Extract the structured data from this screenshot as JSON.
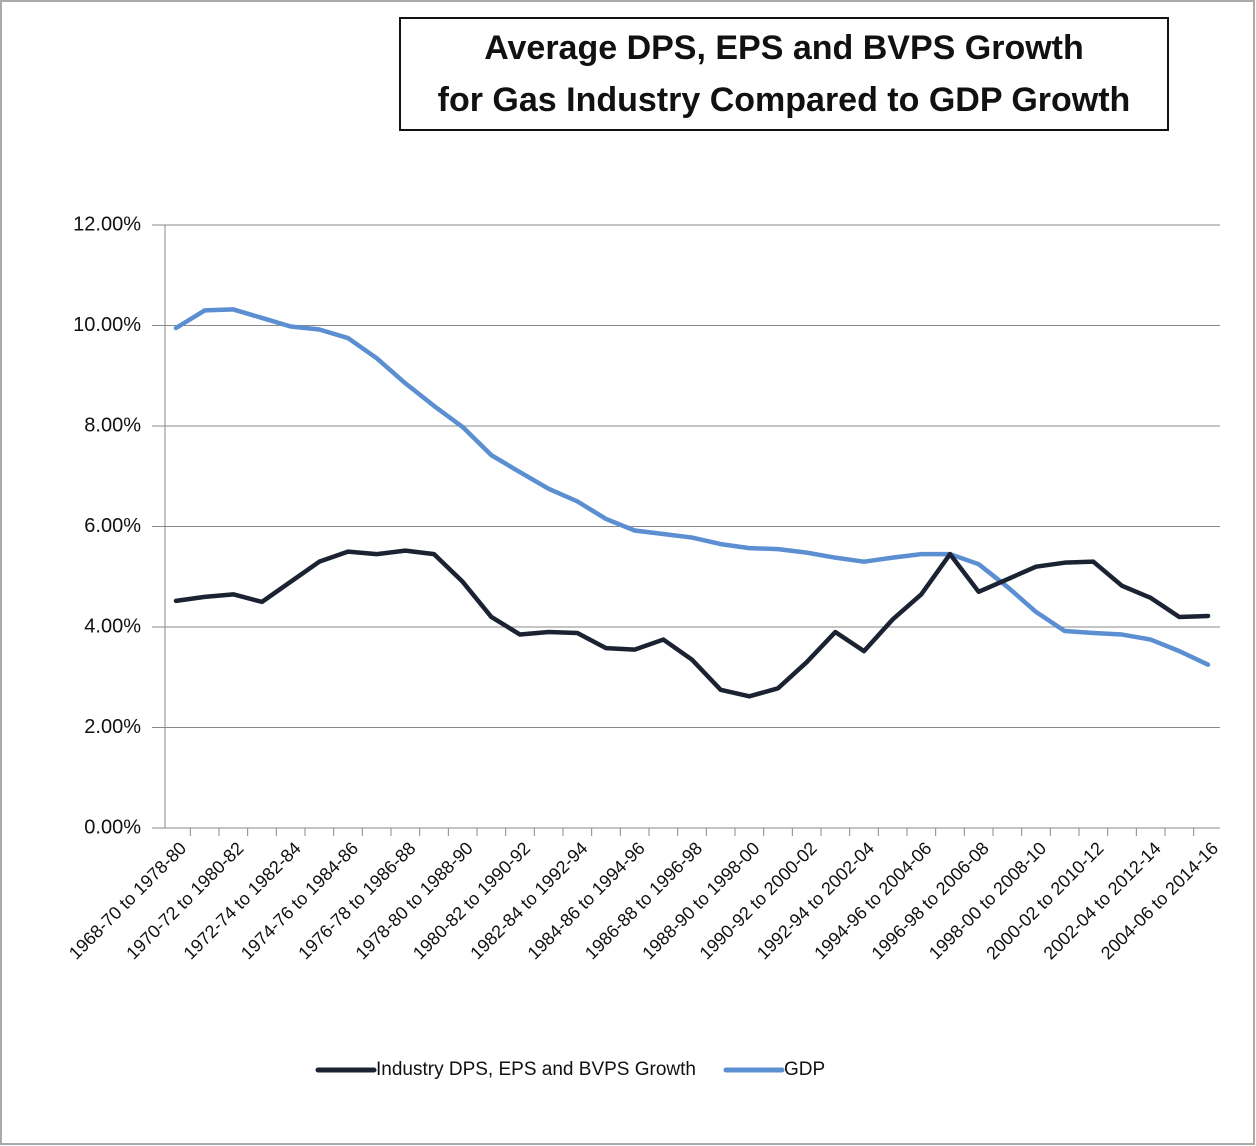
{
  "chart_data": {
    "type": "line",
    "title": [
      "Average DPS, EPS and BVPS Growth",
      "for Gas Industry Compared to GDP Growth"
    ],
    "categories": [
      "1968-70 to 1978-80",
      null,
      "1970-72 to 1980-82",
      null,
      "1972-74 to 1982-84",
      null,
      "1974-76 to 1984-86",
      null,
      "1976-78 to 1986-88",
      null,
      "1978-80 to 1988-90",
      null,
      "1980-82 to 1990-92",
      null,
      "1982-84 to 1992-94",
      null,
      "1984-86 to 1994-96",
      null,
      "1986-88 to 1996-98",
      null,
      "1988-90 to 1998-00",
      null,
      "1990-92 to 2000-02",
      null,
      "1992-94 to 2002-04",
      null,
      "1994-96 to 2004-06",
      null,
      "1996-98 to 2006-08",
      null,
      "1998-00 to 2008-10",
      null,
      "2000-02 to 2010-12",
      null,
      "2002-04 to 2012-14",
      null,
      "2004-06 to 2014-16"
    ],
    "series": [
      {
        "name": "Industry DPS, EPS and BVPS Growth",
        "color": "#1b2333",
        "values": [
          4.52,
          4.6,
          4.65,
          4.5,
          4.9,
          5.3,
          5.5,
          5.45,
          5.52,
          5.45,
          4.9,
          4.2,
          3.85,
          3.9,
          3.88,
          3.58,
          3.55,
          3.75,
          3.35,
          2.75,
          2.62,
          2.78,
          3.3,
          3.9,
          3.52,
          4.15,
          4.65,
          5.45,
          4.7,
          4.95,
          5.2,
          5.28,
          5.3,
          4.82,
          4.58,
          4.2,
          4.22
        ]
      },
      {
        "name": "GDP",
        "color": "#5b8fd1",
        "values": [
          9.95,
          10.3,
          10.32,
          10.15,
          9.98,
          9.92,
          9.75,
          9.35,
          8.85,
          8.4,
          7.98,
          7.42,
          7.08,
          6.75,
          6.5,
          6.15,
          5.92,
          5.85,
          5.78,
          5.65,
          5.57,
          5.55,
          5.48,
          5.38,
          5.3,
          5.38,
          5.45,
          5.45,
          5.25,
          4.8,
          4.3,
          3.92,
          3.88,
          3.85,
          3.75,
          3.52,
          3.25
        ]
      }
    ],
    "ylim": [
      0,
      12
    ],
    "yticks": [
      {
        "value": 0,
        "label": "0.00%"
      },
      {
        "value": 2,
        "label": "2.00%"
      },
      {
        "value": 4,
        "label": "4.00%"
      },
      {
        "value": 6,
        "label": "6.00%"
      },
      {
        "value": 8,
        "label": "8.00%"
      },
      {
        "value": 10,
        "label": "10.00%"
      },
      {
        "value": 12,
        "label": "12.00%"
      }
    ],
    "grid": true,
    "legend": "bottom"
  }
}
